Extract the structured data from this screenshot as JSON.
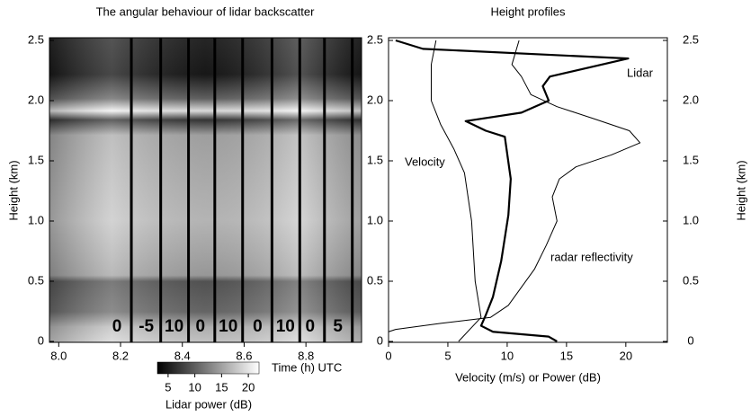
{
  "chart_data": [
    {
      "type": "heatmap",
      "title": "The angular behaviour of lidar backscatter",
      "y_label": "Height (km)",
      "x_label": "Time (h) UTC",
      "xlim": [
        7.97,
        8.98
      ],
      "xticks": [
        {
          "value": 8.0,
          "label": "8.0"
        },
        8.2,
        8.4,
        8.6,
        8.8
      ],
      "ylim": [
        0,
        2.5
      ],
      "yticks": [
        0,
        0.5,
        {
          "value": 1,
          "label": "1.0"
        },
        1.5,
        {
          "value": 2,
          "label": "2.0"
        },
        2.5
      ],
      "segment_boundaries": [
        8.235,
        8.33,
        8.42,
        8.505,
        8.595,
        8.69,
        8.78,
        8.86,
        8.95
      ],
      "segment_labels": [
        "0",
        "-5",
        "10",
        "0",
        "10",
        "0",
        "10",
        "0",
        "5"
      ],
      "colorbar_label": "Lidar power (dB)",
      "clim": [
        3,
        22
      ],
      "cticks": [
        5,
        10,
        15,
        20
      ]
    },
    {
      "type": "line",
      "title": "Height profiles",
      "x_label": "Velocity (m/s) or Power (dB)",
      "y_label": "Height (km)",
      "xlim": [
        0,
        23.5
      ],
      "xticks": [
        0,
        5,
        10,
        15,
        20
      ],
      "ylim": [
        0,
        2.5
      ],
      "yticks": [
        0,
        0.5,
        {
          "value": 1,
          "label": "1.0"
        },
        1.5,
        {
          "value": 2,
          "label": "2.0"
        },
        2.5
      ],
      "series": [
        {
          "name": "Lidar",
          "color": "#000000",
          "linewidth": 2.2,
          "x": [
            14.2,
            13.5,
            8.8,
            7.8,
            8.2,
            8.8,
            9.5,
            10.1,
            10.3,
            9.8,
            8.2,
            6.5,
            11.2,
            13.5,
            13,
            13.6,
            20.2,
            2.9,
            0.6
          ],
          "y": [
            0,
            0.04,
            0.08,
            0.13,
            0.22,
            0.37,
            0.67,
            1.05,
            1.35,
            1.7,
            1.75,
            1.83,
            1.9,
            2.0,
            2.12,
            2.2,
            2.35,
            2.43,
            2.5
          ]
        },
        {
          "name": "Velocity",
          "color": "#000000",
          "linewidth": 1,
          "x": [
            5.9,
            7.8,
            7.3,
            7.0,
            6.4,
            5.5,
            4.4,
            3.6,
            3.6,
            4.0
          ],
          "y": [
            0,
            0.2,
            0.5,
            1.0,
            1.4,
            1.6,
            1.8,
            2.0,
            2.3,
            2.5
          ]
        },
        {
          "name": "radar reflectivity",
          "color": "#000000",
          "linewidth": 1,
          "x": [
            0,
            0.6,
            4.4,
            8.6,
            10.1,
            11.2,
            12.3,
            13.3,
            14.2,
            13.8,
            14.4,
            15.8,
            18.8,
            21.2,
            20.3,
            17.3,
            14.2,
            12,
            11.2,
            10.4,
            10.7,
            11
          ],
          "y": [
            0.08,
            0.1,
            0.15,
            0.2,
            0.3,
            0.45,
            0.6,
            0.8,
            1.0,
            1.2,
            1.35,
            1.45,
            1.55,
            1.65,
            1.75,
            1.85,
            1.95,
            2.05,
            2.2,
            2.3,
            2.4,
            2.5
          ]
        }
      ]
    }
  ]
}
